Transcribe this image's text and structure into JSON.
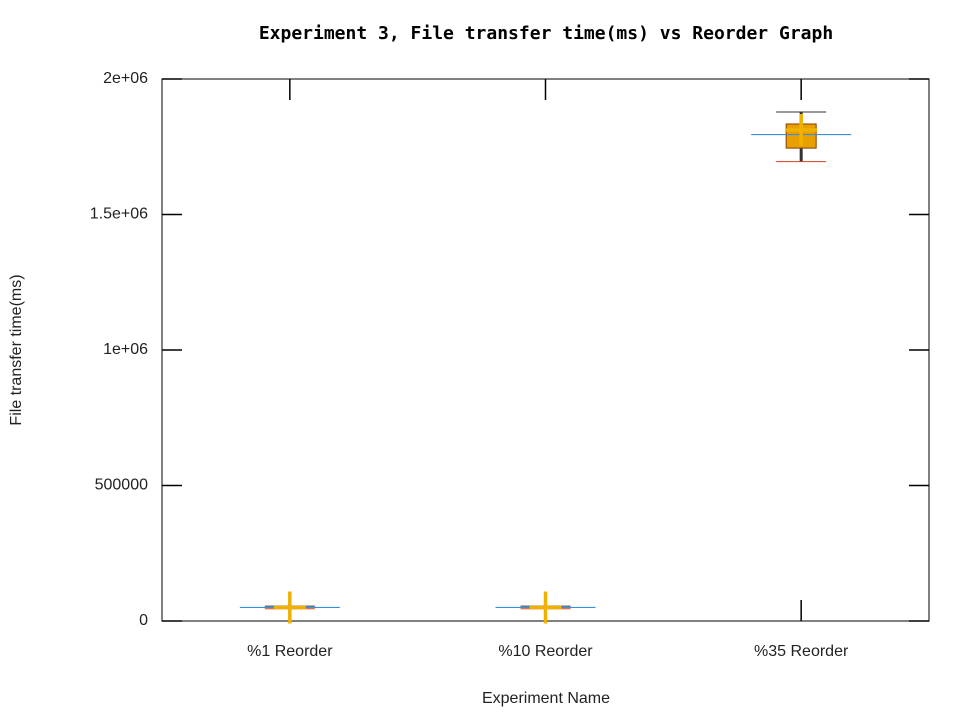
{
  "chart_data": {
    "type": "boxplot",
    "title": "Experiment 3, File transfer time(ms) vs Reorder Graph",
    "x_label": "Experiment Name",
    "y_label": "File transfer time(ms)",
    "categories": [
      "%1 Reorder",
      "%10 Reorder",
      "%35 Reorder"
    ],
    "min": [
      45000,
      45000,
      1695000
    ],
    "q1": [
      48000,
      48000,
      1745000
    ],
    "median": [
      50000,
      50000,
      1795000
    ],
    "q3": [
      52000,
      52000,
      1834000
    ],
    "max": [
      55000,
      55000,
      1878000
    ],
    "mean": [
      50000,
      50000,
      1812000
    ],
    "box_color": "#e8a000",
    "median_color": "#3b8fd8",
    "whisker_color": "#333333",
    "mean_color": "#f0b000",
    "ylim": [
      0,
      2000000
    ],
    "yticks": [
      0,
      500000,
      {
        "value": 1000000,
        "label": "1e+06"
      },
      {
        "value": 1500000,
        "label": "1.5e+06"
      },
      {
        "value": 2000000,
        "label": "2e+06"
      }
    ]
  }
}
